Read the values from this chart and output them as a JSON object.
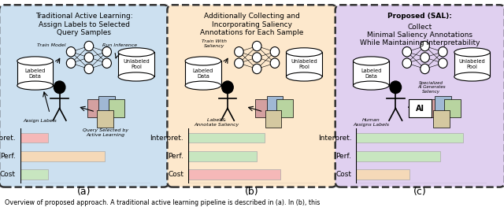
{
  "figure_width": 6.4,
  "figure_height": 2.68,
  "dpi": 100,
  "caption": "Overview of proposed approach. A traditional active learning pipeline is described in (a). In (b), this",
  "panels": [
    {
      "id": "a",
      "label": "(a)",
      "title": "Traditional Active Learning:\nAssign Labels to Selected\nQuery Samples",
      "title_bold": false,
      "bg_color": "#cce0f0",
      "border_color": "#333333",
      "bars": {
        "labels": [
          "Cost",
          "Perf.",
          "Interpret."
        ],
        "values": [
          0.18,
          0.55,
          0.18
        ],
        "colors": [
          "#c8e6c0",
          "#f5d9b8",
          "#f5b8b8"
        ]
      }
    },
    {
      "id": "b",
      "label": "(b)",
      "title": "Additionally Collecting and\nIncorporating Saliency\nAnnotations for Each Sample",
      "title_bold": false,
      "bg_color": "#fde8cc",
      "border_color": "#333333",
      "bars": {
        "labels": [
          "Cost",
          "Perf.",
          "Interpret."
        ],
        "values": [
          0.6,
          0.45,
          0.5
        ],
        "colors": [
          "#f5b8b8",
          "#c8e6c0",
          "#c8e6c0"
        ]
      }
    },
    {
      "id": "c",
      "label": "(c)",
      "title_part1": "Proposed (SAL):",
      "title_part2": " Collect\nMinimal Saliency Annotations\nWhile Maintaining Interpretability",
      "bg_color": "#e0d0f0",
      "border_color": "#333333",
      "bars": {
        "labels": [
          "Cost",
          "Perf.",
          "Interpret."
        ],
        "values": [
          0.35,
          0.55,
          0.7
        ],
        "colors": [
          "#f5d9b8",
          "#c8e6c0",
          "#c8e6c0"
        ]
      }
    }
  ],
  "nn_layers": [
    2,
    3,
    2
  ],
  "img_colors": [
    "#d4a0a0",
    "#a0b8d4",
    "#b8d4a0",
    "#d4c8a0"
  ]
}
